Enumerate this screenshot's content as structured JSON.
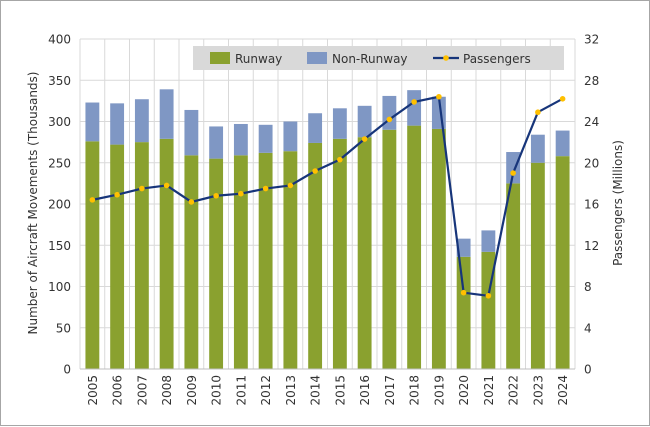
{
  "chart_data": {
    "type": "bar",
    "stacked": true,
    "categories": [
      "2005",
      "2006",
      "2007",
      "2008",
      "2009",
      "2010",
      "2011",
      "2012",
      "2013",
      "2014",
      "2015",
      "2016",
      "2017",
      "2018",
      "2019",
      "2020",
      "2021",
      "2022",
      "2023",
      "2024"
    ],
    "series": [
      {
        "name": "Runway",
        "axis": "left",
        "kind": "bar",
        "color": "#8aa12f",
        "values": [
          276,
          272,
          275,
          279,
          259,
          255,
          259,
          262,
          264,
          274,
          279,
          281,
          290,
          295,
          291,
          136,
          142,
          225,
          250,
          258
        ]
      },
      {
        "name": "Non-Runway",
        "axis": "left",
        "kind": "bar",
        "color": "#7f97c4",
        "values": [
          47,
          50,
          52,
          60,
          55,
          39,
          38,
          34,
          36,
          36,
          37,
          38,
          41,
          43,
          39,
          22,
          26,
          38,
          34,
          31
        ]
      },
      {
        "name": "Passengers",
        "axis": "right",
        "kind": "line",
        "color": "#17357a",
        "marker_color": "#ffc000",
        "values": [
          16.4,
          16.9,
          17.5,
          17.8,
          16.2,
          16.8,
          17.0,
          17.5,
          17.8,
          19.2,
          20.3,
          22.3,
          24.2,
          25.9,
          26.4,
          7.4,
          7.1,
          19.0,
          24.9,
          26.2
        ]
      }
    ],
    "ylabel": "Number of Aircraft Movements (Thousands)",
    "y2label": "Passengers (Millions)",
    "ylim": [
      0,
      400
    ],
    "yticks": [
      0,
      50,
      100,
      150,
      200,
      250,
      300,
      350,
      400
    ],
    "y2lim": [
      0,
      32
    ],
    "y2ticks": [
      0,
      4,
      8,
      12,
      16,
      20,
      24,
      28,
      32
    ],
    "grid": true,
    "legend_position": "top"
  }
}
